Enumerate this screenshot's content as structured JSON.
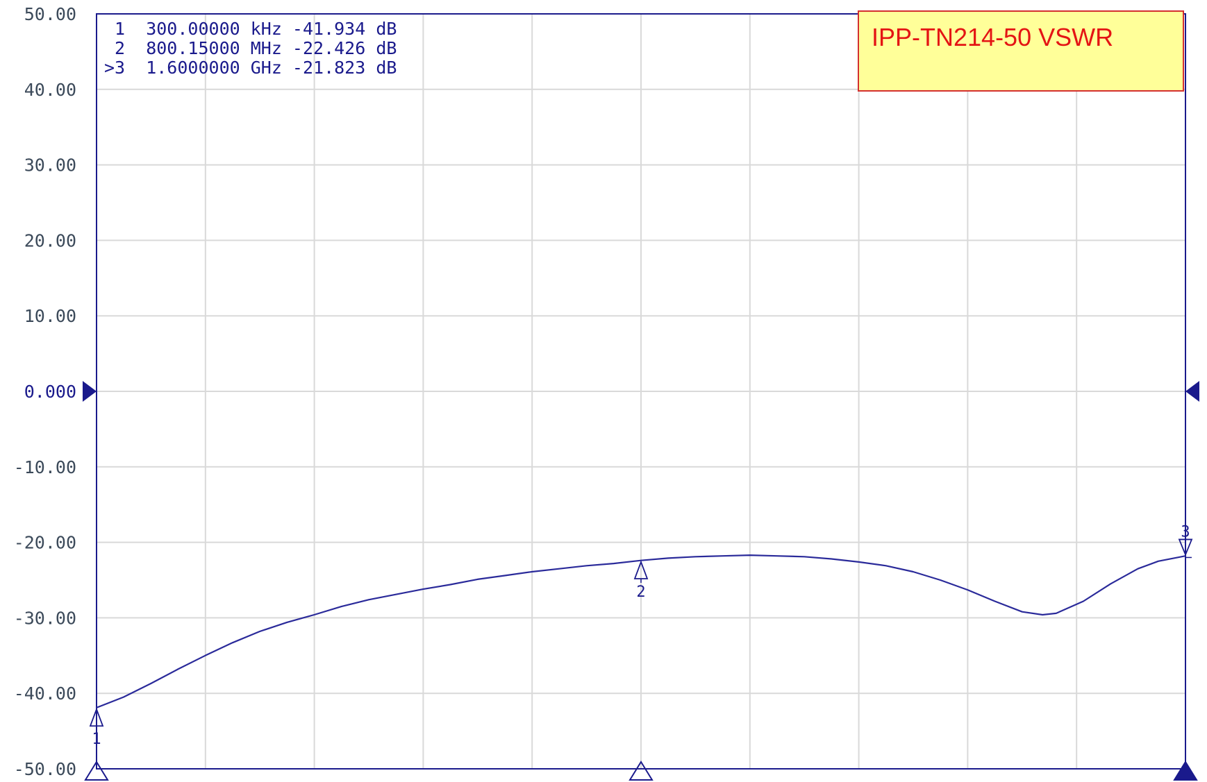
{
  "chart_data": {
    "type": "line",
    "title": "IPP-TN214-50 VSWR",
    "ylim": [
      -50,
      50
    ],
    "y_ticks": [
      "50.00",
      "40.00",
      "30.00",
      "20.00",
      "10.00",
      "0.000",
      "-10.00",
      "-20.00",
      "-30.00",
      "-40.00",
      "-50.00"
    ],
    "reference_level": 0,
    "x_unit": "MHz",
    "xlim": [
      0.3,
      1600
    ],
    "x_divisions": 10,
    "grid": true,
    "series": [
      {
        "color": "#2a2a9a",
        "points": [
          [
            0.3,
            -41.9
          ],
          [
            40,
            -40.5
          ],
          [
            80,
            -38.7
          ],
          [
            120,
            -36.8
          ],
          [
            160,
            -35.0
          ],
          [
            200,
            -33.3
          ],
          [
            240,
            -31.8
          ],
          [
            280,
            -30.6
          ],
          [
            320,
            -29.6
          ],
          [
            360,
            -28.5
          ],
          [
            400,
            -27.6
          ],
          [
            440,
            -26.9
          ],
          [
            480,
            -26.2
          ],
          [
            520,
            -25.6
          ],
          [
            560,
            -24.9
          ],
          [
            600,
            -24.4
          ],
          [
            640,
            -23.9
          ],
          [
            680,
            -23.5
          ],
          [
            720,
            -23.1
          ],
          [
            760,
            -22.8
          ],
          [
            800.15,
            -22.4
          ],
          [
            840,
            -22.1
          ],
          [
            880,
            -21.9
          ],
          [
            920,
            -21.8
          ],
          [
            960,
            -21.7
          ],
          [
            1000,
            -21.8
          ],
          [
            1040,
            -21.9
          ],
          [
            1080,
            -22.2
          ],
          [
            1120,
            -22.6
          ],
          [
            1160,
            -23.1
          ],
          [
            1200,
            -23.9
          ],
          [
            1240,
            -25.0
          ],
          [
            1280,
            -26.3
          ],
          [
            1320,
            -27.8
          ],
          [
            1360,
            -29.2
          ],
          [
            1390,
            -29.6
          ],
          [
            1410,
            -29.4
          ],
          [
            1450,
            -27.8
          ],
          [
            1490,
            -25.5
          ],
          [
            1530,
            -23.5
          ],
          [
            1560,
            -22.5
          ],
          [
            1600,
            -21.8
          ]
        ]
      }
    ],
    "markers": [
      {
        "id": "1",
        "prefix": " ",
        "freq": "300.00000",
        "unit": "kHz",
        "value": "-41.934",
        "value_unit": "dB",
        "x": 0.3,
        "y": -41.934,
        "direction": "up"
      },
      {
        "id": "2",
        "prefix": " ",
        "freq": "800.15000",
        "unit": "MHz",
        "value": "-22.426",
        "value_unit": "dB",
        "x": 800.15,
        "y": -22.426,
        "direction": "up"
      },
      {
        "id": "3",
        "prefix": ">",
        "freq": "1.6000000",
        "unit": "GHz",
        "value": "-21.823",
        "value_unit": "dB",
        "x": 1600,
        "y": -21.823,
        "direction": "down"
      }
    ],
    "colors": {
      "grid": "#d9d9d9",
      "axis": "#1a1a8c",
      "trace": "#2a2a9a"
    }
  }
}
